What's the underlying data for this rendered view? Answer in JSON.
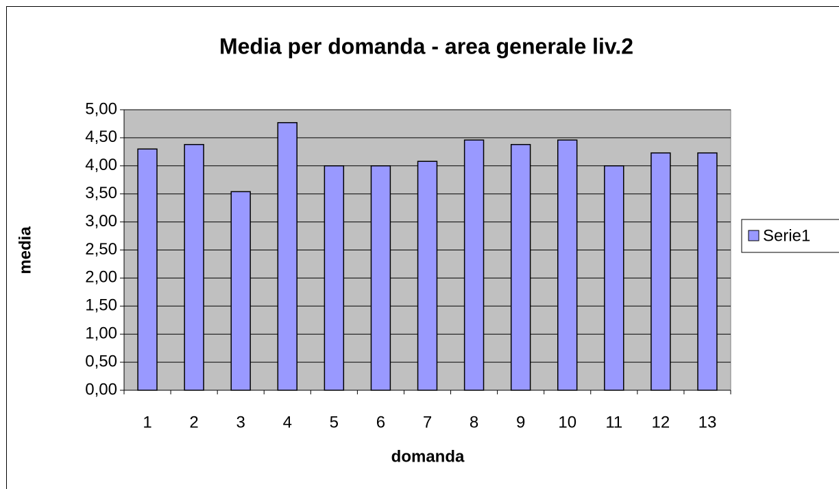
{
  "chart_data": {
    "type": "bar",
    "title": "Media per domanda - area generale liv.2",
    "x_label": "domanda",
    "y_label": "media",
    "categories": [
      "1",
      "2",
      "3",
      "4",
      "5",
      "6",
      "7",
      "8",
      "9",
      "10",
      "11",
      "12",
      "13"
    ],
    "series": [
      {
        "name": "Serie1",
        "color": "#9999ff",
        "values": [
          4.3,
          4.38,
          3.54,
          4.77,
          4.0,
          4.0,
          4.08,
          4.46,
          4.38,
          4.46,
          4.0,
          4.23,
          4.23
        ]
      }
    ],
    "ylim": [
      0,
      5
    ],
    "yticks": [
      {
        "value": 0,
        "label": "0,00"
      },
      {
        "value": 0.5,
        "label": "0,50"
      },
      {
        "value": 1,
        "label": "1,00"
      },
      {
        "value": 1.5,
        "label": "1,50"
      },
      {
        "value": 2,
        "label": "2,00"
      },
      {
        "value": 2.5,
        "label": "2,50"
      },
      {
        "value": 3,
        "label": "3,00"
      },
      {
        "value": 3.5,
        "label": "3,50"
      },
      {
        "value": 4,
        "label": "4,00"
      },
      {
        "value": 4.5,
        "label": "4,50"
      },
      {
        "value": 5,
        "label": "5,00"
      }
    ],
    "grid": true,
    "legend": "right",
    "plot_background": "#c0c0c0"
  }
}
